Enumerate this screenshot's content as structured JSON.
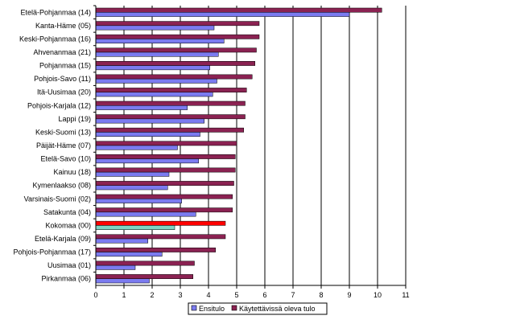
{
  "chart_data": {
    "type": "bar",
    "orientation": "horizontal",
    "categories": [
      "Etelä-Pohjanmaa (14)",
      "Kanta-Häme (05)",
      "Keski-Pohjanmaa (16)",
      "Ahvenanmaa (21)",
      "Pohjanmaa (15)",
      "Pohjois-Savo (11)",
      "Itä-Uusimaa (20)",
      "Pohjois-Karjala (12)",
      "Lappi (19)",
      "Keski-Suomi (13)",
      "Päijät-Häme (07)",
      "Etelä-Savo (10)",
      "Kainuu (18)",
      "Kymenlaakso (08)",
      "Varsinais-Suomi (02)",
      "Satakunta (04)",
      "Kokomaa (00)",
      "Etelä-Karjala (09)",
      "Pohjois-Pohjanmaa (17)",
      "Uusimaa (01)",
      "Pirkanmaa (06)"
    ],
    "series": [
      {
        "name": "Ensitulo",
        "color": "#7b7bf0",
        "values": [
          9.0,
          4.2,
          4.55,
          4.35,
          4.05,
          4.3,
          4.15,
          3.25,
          3.85,
          3.7,
          2.9,
          3.65,
          2.6,
          2.55,
          3.05,
          3.55,
          2.8,
          1.85,
          2.35,
          1.4,
          1.9
        ]
      },
      {
        "name": "Käytettävissä oleva tulo",
        "color": "#8b2252",
        "values": [
          10.15,
          5.8,
          5.8,
          5.7,
          5.65,
          5.55,
          5.35,
          5.3,
          5.3,
          5.25,
          5.0,
          4.95,
          4.95,
          4.9,
          4.85,
          4.85,
          4.6,
          4.6,
          4.25,
          3.5,
          3.45
        ]
      }
    ],
    "highlight": {
      "category": "Kokomaa (00)",
      "colors": {
        "Ensitulo": "#7fd4c4",
        "Käytettävissä oleva tulo": "#ff0000"
      }
    },
    "xlim": [
      0,
      11
    ],
    "xticks": [
      "0",
      "1",
      "2",
      "3",
      "4",
      "5",
      "6",
      "7",
      "8",
      "9",
      "10",
      "11"
    ],
    "grid": true,
    "legend_position": "bottom",
    "title": "",
    "xlabel": "",
    "ylabel": ""
  }
}
